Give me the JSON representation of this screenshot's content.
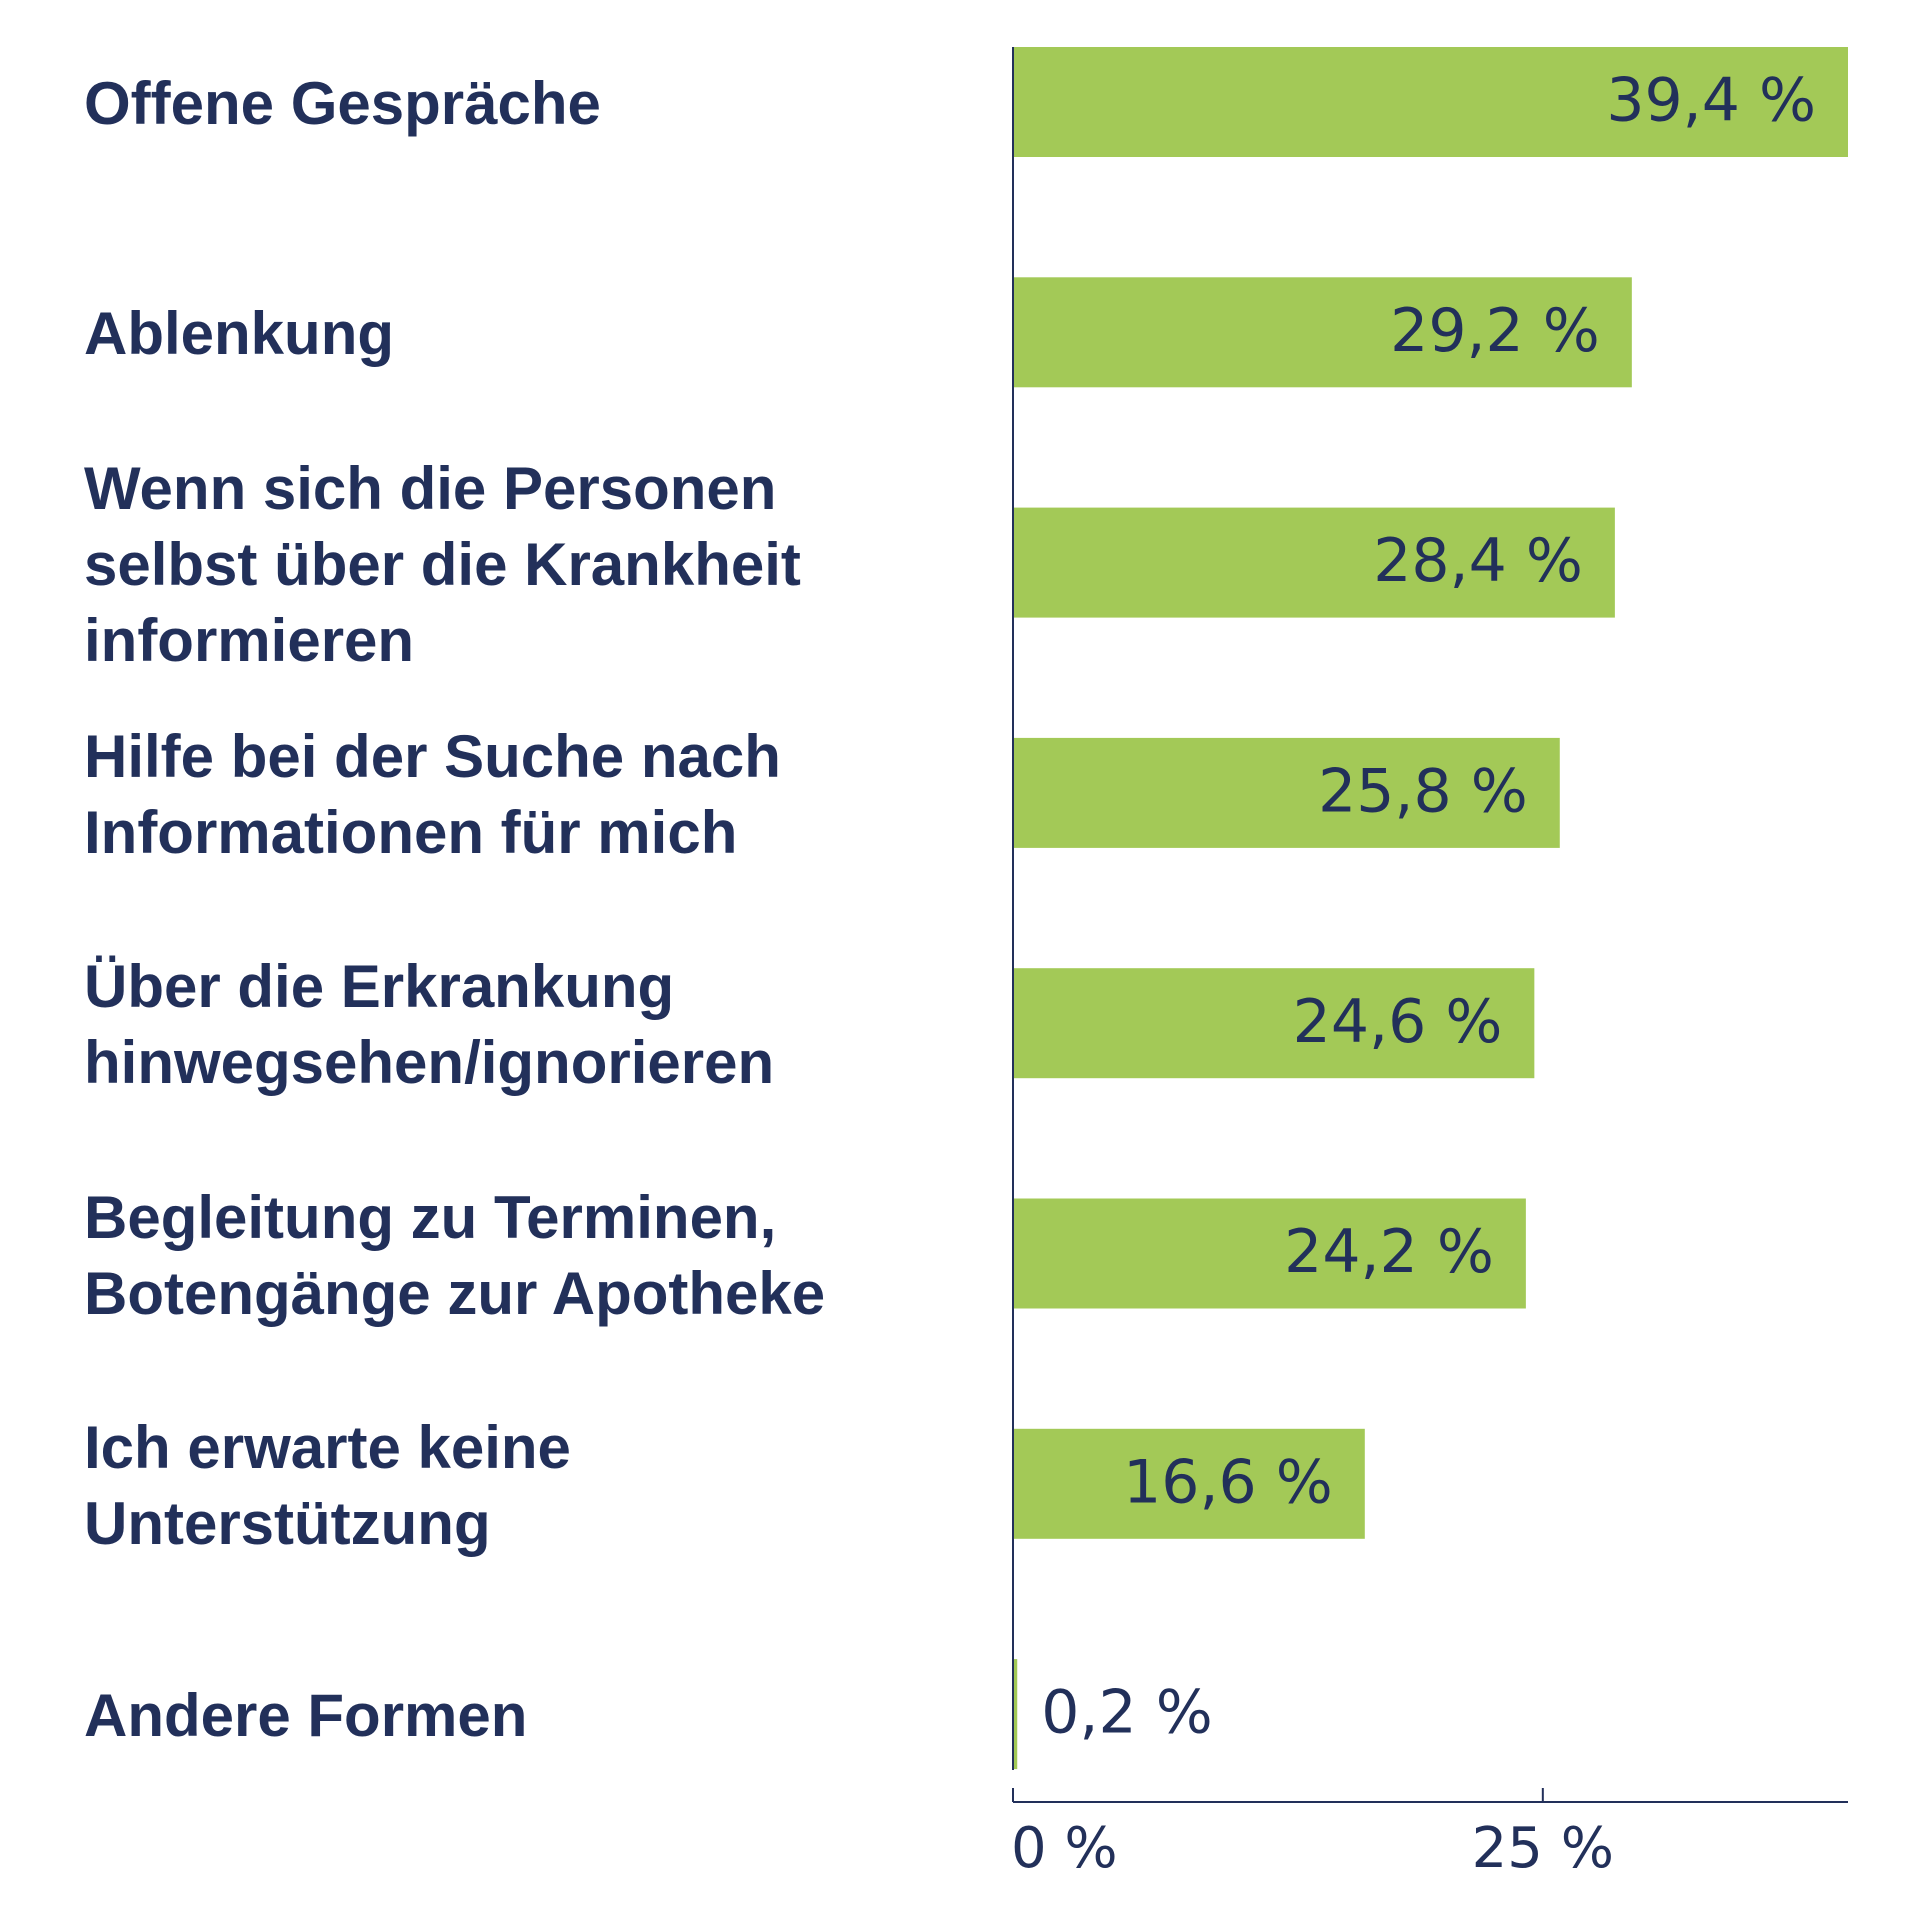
{
  "colors": {
    "bar": "#a3c957",
    "text": "#22305a",
    "axis": "#22305a"
  },
  "chart_data": {
    "type": "bar",
    "orientation": "horizontal",
    "categories": [
      "Offene Gespräche",
      "Ablenkung",
      "Wenn sich die Personen\nselbst über die Krankheit\ninformieren",
      "Hilfe bei der Suche nach\nInformationen für mich",
      "Über die Erkrankung\nhinwegsehen/ignorieren",
      "Begleitung zu Terminen,\nBotengänge zur Apotheke",
      "Ich erwarte keine\nUnterstützung",
      "Andere Formen"
    ],
    "values": [
      39.4,
      29.2,
      28.4,
      25.8,
      24.6,
      24.2,
      16.6,
      0.2
    ],
    "value_labels": [
      "39,4 %",
      "29,2 %",
      "28,4 %",
      "25,8 %",
      "24,6 %",
      "24,2 %",
      "16,6 %",
      "0,2 %"
    ],
    "xlim": [
      0,
      39.4
    ],
    "x_ticks": [
      0,
      25
    ],
    "x_tick_labels": [
      "0 %",
      "25 %"
    ],
    "grid": false,
    "legend": "none"
  }
}
